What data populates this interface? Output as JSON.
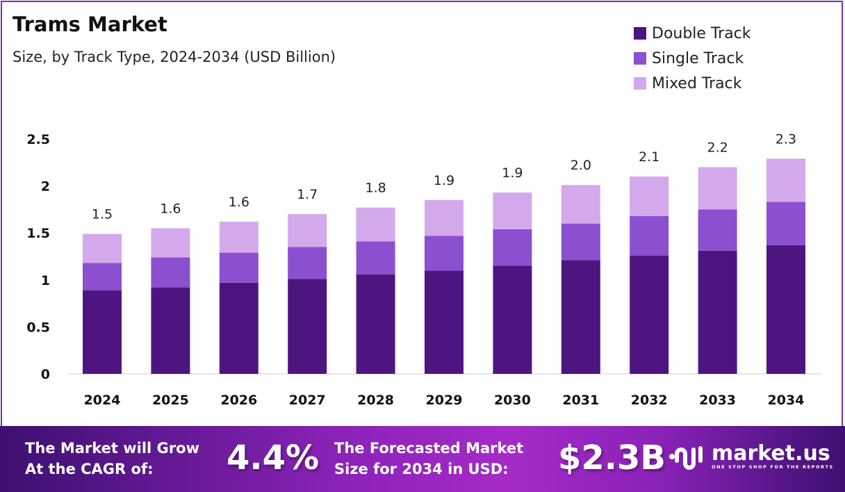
{
  "chart_data": {
    "type": "bar",
    "stacked": true,
    "title": "Trams Market",
    "subtitle": "Size, by Track Type, 2024-2034 (USD Billion)",
    "categories": [
      "2024",
      "2025",
      "2026",
      "2027",
      "2028",
      "2029",
      "2030",
      "2031",
      "2032",
      "2033",
      "2034"
    ],
    "series": [
      {
        "name": "Double Track",
        "color": "#4e1580",
        "values": [
          0.89,
          0.92,
          0.97,
          1.01,
          1.06,
          1.1,
          1.15,
          1.21,
          1.26,
          1.31,
          1.37
        ]
      },
      {
        "name": "Single Track",
        "color": "#8b4fd0",
        "values": [
          0.29,
          0.32,
          0.32,
          0.34,
          0.35,
          0.37,
          0.39,
          0.39,
          0.42,
          0.44,
          0.46
        ]
      },
      {
        "name": "Mixed Track",
        "color": "#d4a9ec",
        "values": [
          0.31,
          0.31,
          0.33,
          0.35,
          0.36,
          0.38,
          0.39,
          0.41,
          0.42,
          0.45,
          0.46
        ]
      }
    ],
    "totals_labels": [
      "1.5",
      "1.6",
      "1.6",
      "1.7",
      "1.8",
      "1.9",
      "1.9",
      "2.0",
      "2.1",
      "2.2",
      "2.3"
    ],
    "yticks": [
      "0",
      "0.5",
      "1",
      "1.5",
      "2",
      "2.5"
    ],
    "ylim": [
      0,
      2.5
    ],
    "grid": false,
    "legend_position": "top-right"
  },
  "footer": {
    "cagr_text_1": "The Market will Grow",
    "cagr_text_2": "At the CAGR of:",
    "cagr_value": "4.4%",
    "forecast_text_1": "The Forecasted Market",
    "forecast_text_2": "Size for 2034 in USD:",
    "forecast_value": "$2.3B",
    "logo_name": "market.us",
    "logo_tagline": "ONE STOP SHOP FOR THE REPORTS"
  }
}
